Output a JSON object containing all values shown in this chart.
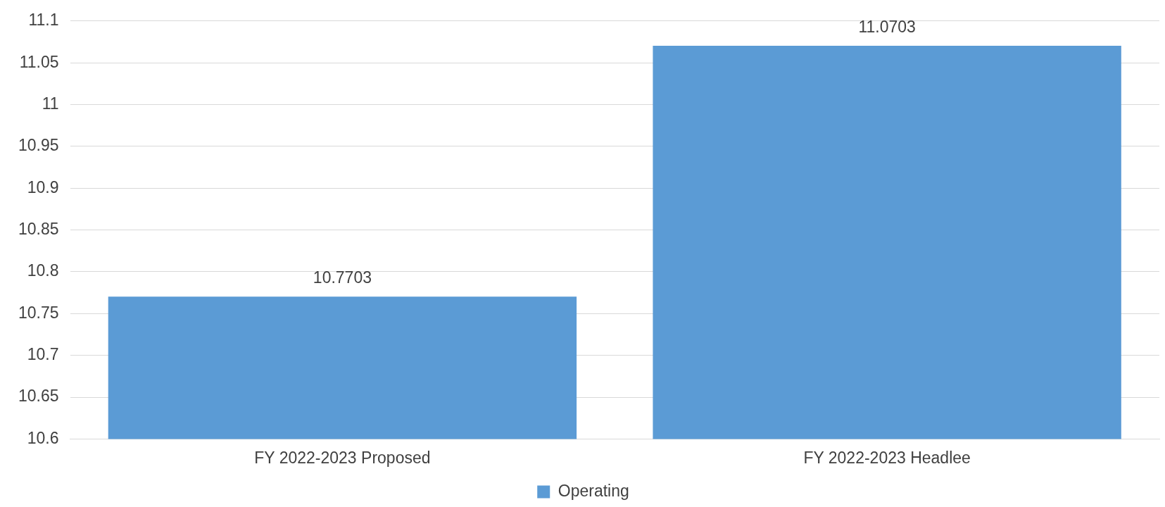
{
  "chart_data": {
    "type": "bar",
    "categories": [
      "FY 2022-2023 Proposed",
      "FY 2022-2023 Headlee"
    ],
    "series": [
      {
        "name": "Operating",
        "color": "#5b9bd5",
        "values": [
          10.7703,
          11.0703
        ]
      }
    ],
    "ylim": [
      10.6,
      11.1
    ],
    "yticks": [
      10.6,
      10.65,
      10.7,
      10.75,
      10.8,
      10.85,
      10.9,
      10.95,
      11,
      11.05,
      11.1
    ],
    "grid": "y",
    "legend": "bottom",
    "data_labels": true
  }
}
